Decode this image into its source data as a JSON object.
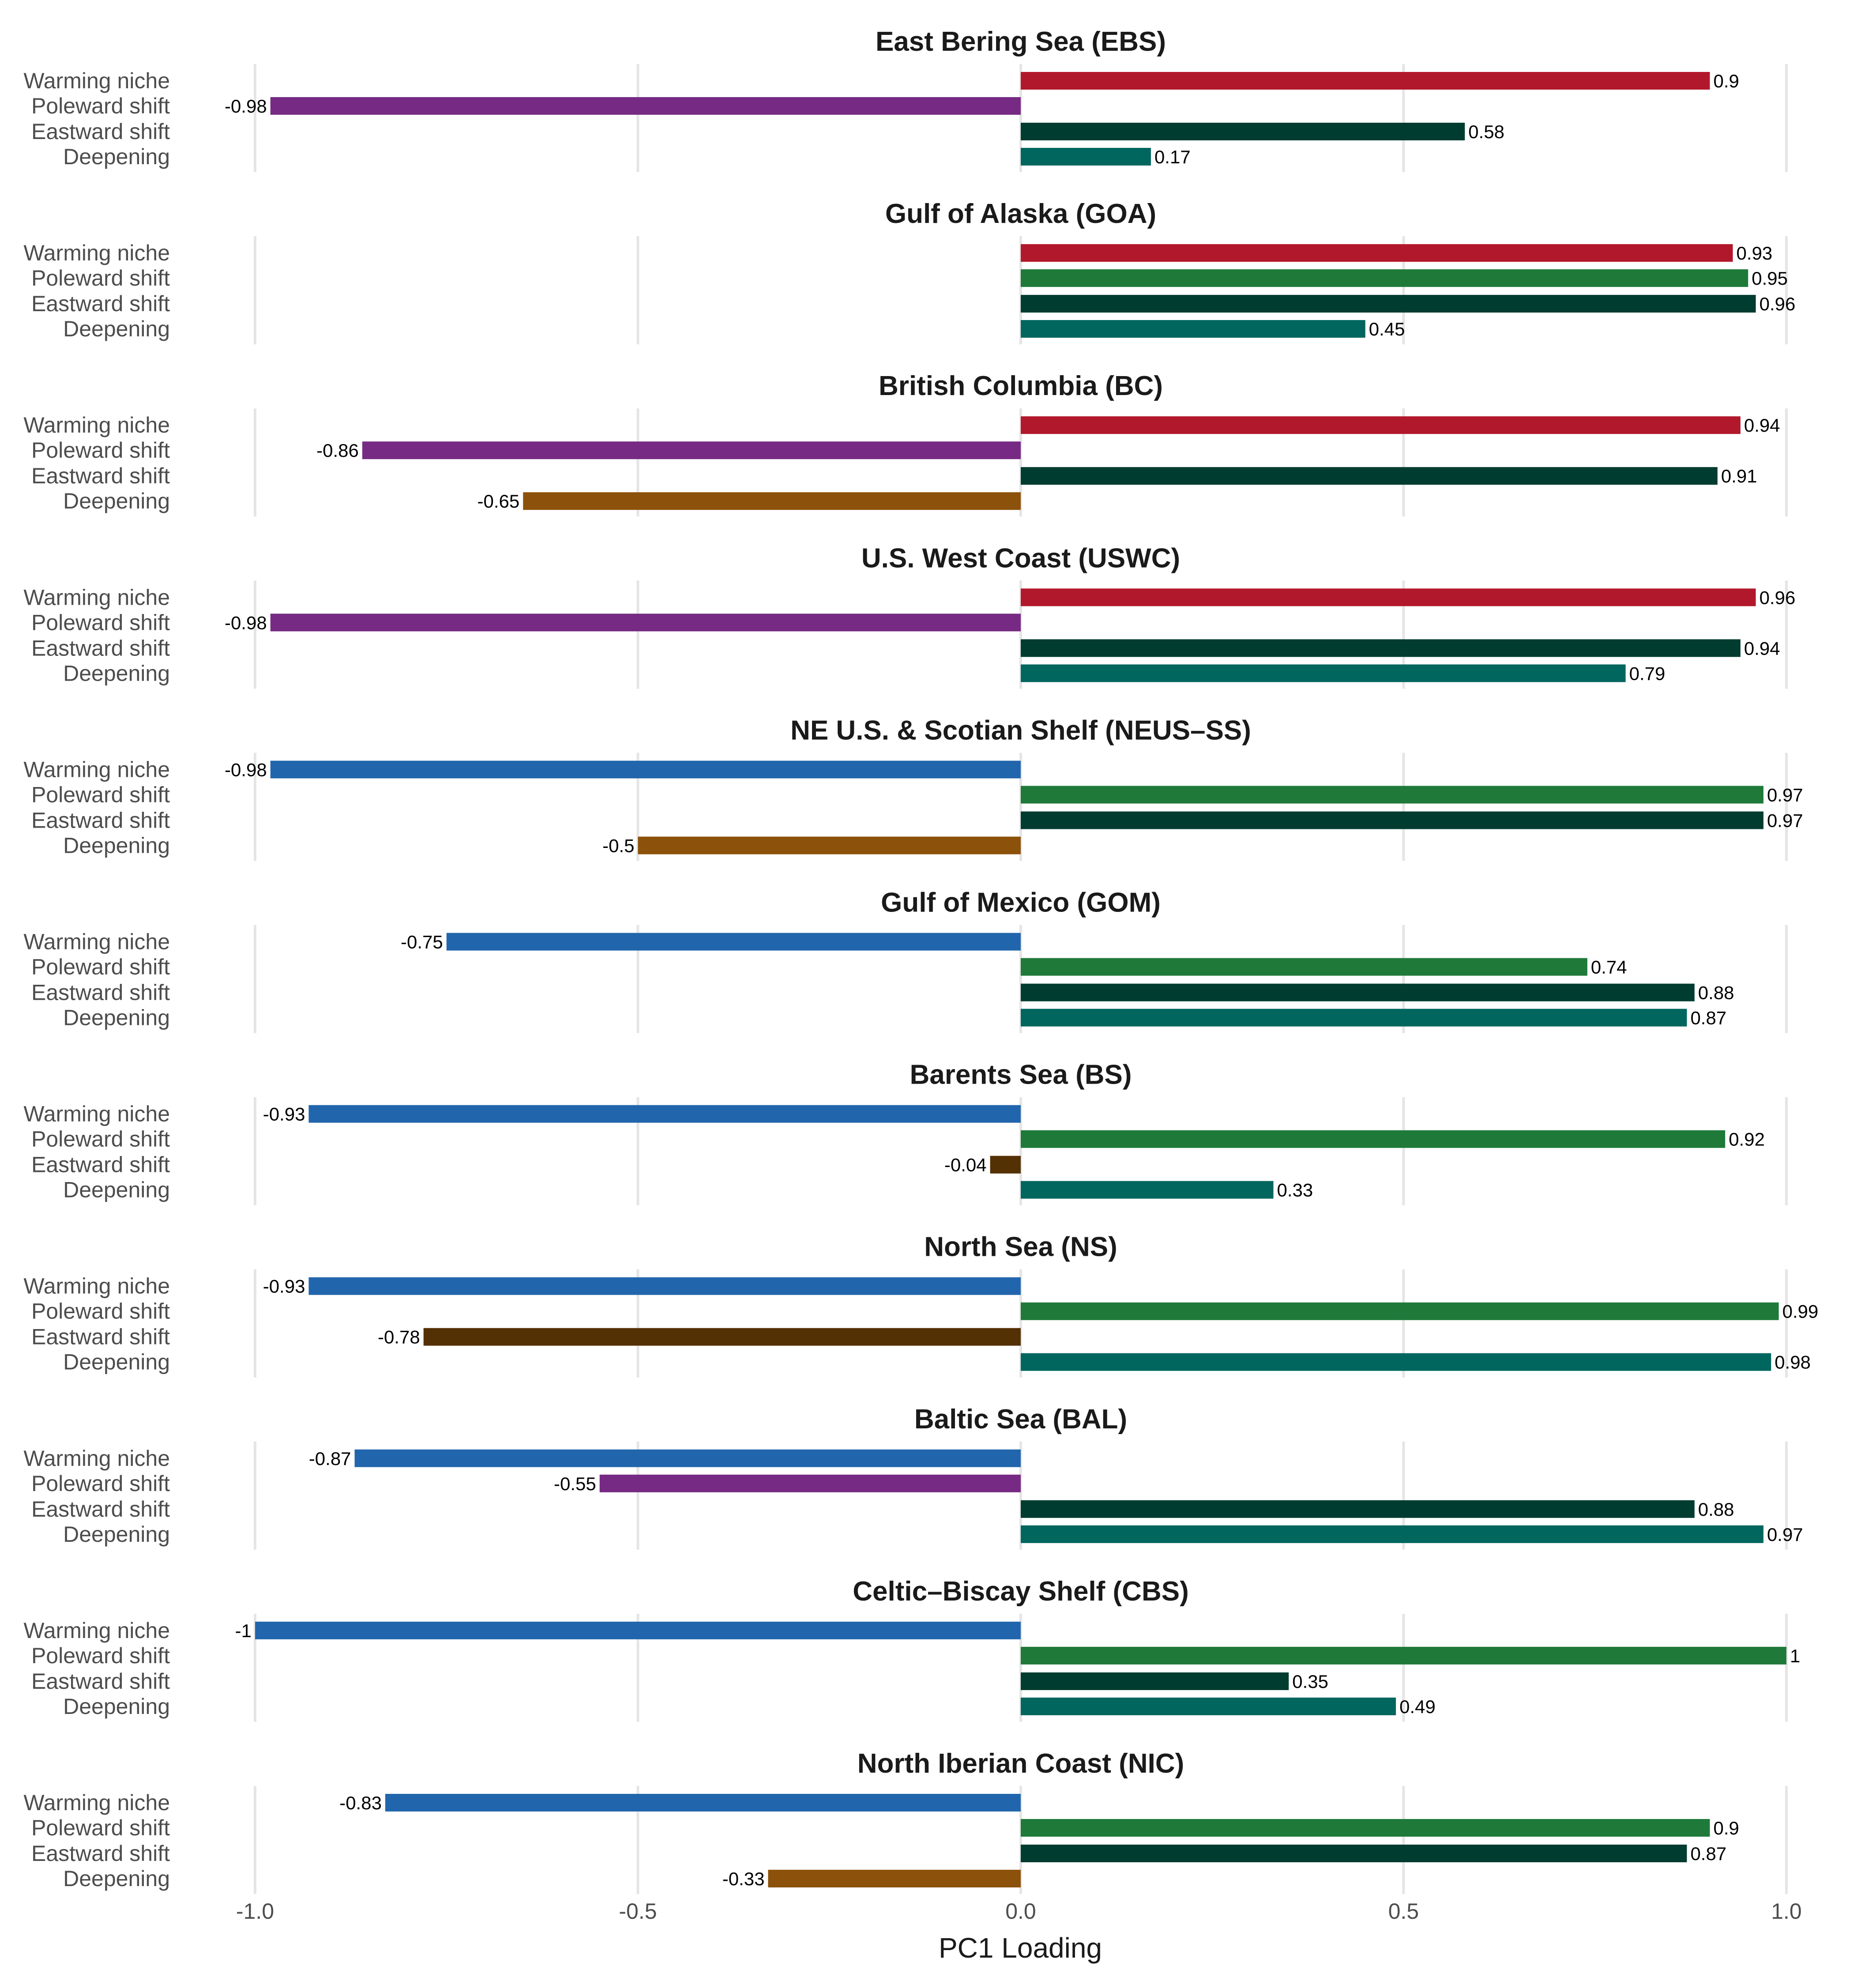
{
  "chart_data": {
    "type": "bar",
    "orientation": "horizontal",
    "xlabel": "PC1 Loading",
    "xlim": [
      -1.0,
      1.0
    ],
    "xticks": [
      -1.0,
      -0.5,
      0.0,
      0.5,
      1.0
    ],
    "xtick_labels": [
      "-1.0",
      "-0.5",
      "0.0",
      "0.5",
      "1.0"
    ],
    "grid": true,
    "categories": [
      "Warming niche",
      "Poleward shift",
      "Eastward shift",
      "Deepening"
    ],
    "colors": {
      "warming_positive": "#B2182B",
      "warming_negative": "#2166AC",
      "poleward_positive": "#1F7A3A",
      "poleward_negative": "#762A83",
      "eastward_positive": "#003C30",
      "eastward_negative": "#543005",
      "deepening_positive": "#01665E",
      "deepening_negative": "#8C510A"
    },
    "panels": [
      {
        "title": "East Bering Sea (EBS)",
        "values": [
          0.9,
          -0.98,
          0.58,
          0.17
        ],
        "labels": [
          "0.9",
          "-0.98",
          "0.58",
          "0.17"
        ]
      },
      {
        "title": "Gulf of Alaska (GOA)",
        "values": [
          0.93,
          0.95,
          0.96,
          0.45
        ],
        "labels": [
          "0.93",
          "0.95",
          "0.96",
          "0.45"
        ]
      },
      {
        "title": "British Columbia (BC)",
        "values": [
          0.94,
          -0.86,
          0.91,
          -0.65
        ],
        "labels": [
          "0.94",
          "-0.86",
          "0.91",
          "-0.65"
        ]
      },
      {
        "title": "U.S. West Coast (USWC)",
        "values": [
          0.96,
          -0.98,
          0.94,
          0.79
        ],
        "labels": [
          "0.96",
          "-0.98",
          "0.94",
          "0.79"
        ]
      },
      {
        "title": "NE U.S. & Scotian Shelf (NEUS–SS)",
        "values": [
          -0.98,
          0.97,
          0.97,
          -0.5
        ],
        "labels": [
          "-0.98",
          "0.97",
          "0.97",
          "-0.5"
        ]
      },
      {
        "title": "Gulf of Mexico (GOM)",
        "values": [
          -0.75,
          0.74,
          0.88,
          0.87
        ],
        "labels": [
          "-0.75",
          "0.74",
          "0.88",
          "0.87"
        ]
      },
      {
        "title": "Barents Sea (BS)",
        "values": [
          -0.93,
          0.92,
          -0.04,
          0.33
        ],
        "labels": [
          "-0.93",
          "0.92",
          "-0.04",
          "0.33"
        ]
      },
      {
        "title": "North Sea (NS)",
        "values": [
          -0.93,
          0.99,
          -0.78,
          0.98
        ],
        "labels": [
          "-0.93",
          "0.99",
          "-0.78",
          "0.98"
        ]
      },
      {
        "title": "Baltic Sea (BAL)",
        "values": [
          -0.87,
          -0.55,
          0.88,
          0.97
        ],
        "labels": [
          "-0.87",
          "-0.55",
          "0.88",
          "0.97"
        ]
      },
      {
        "title": "Celtic–Biscay Shelf (CBS)",
        "values": [
          -1.0,
          1.0,
          0.35,
          0.49
        ],
        "labels": [
          "-1",
          "1",
          "0.35",
          "0.49"
        ]
      },
      {
        "title": "North Iberian Coast (NIC)",
        "values": [
          -0.83,
          0.9,
          0.87,
          -0.33
        ],
        "labels": [
          "-0.83",
          "0.9",
          "0.87",
          "-0.33"
        ]
      }
    ]
  }
}
